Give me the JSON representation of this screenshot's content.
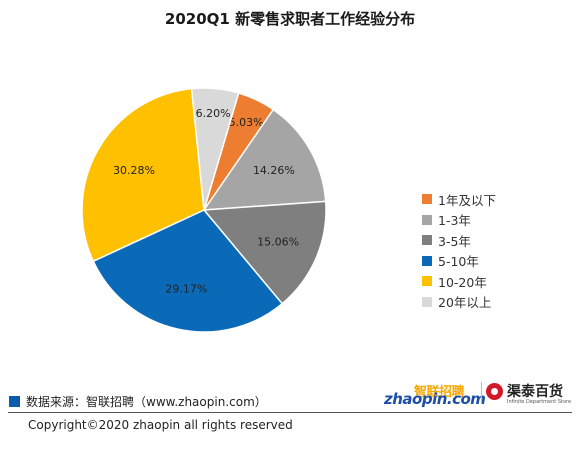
{
  "chart_data": {
    "type": "pie",
    "title": "2020Q1 新零售求职者工作经验分布",
    "categories": [
      "1年及以下",
      "1-3年",
      "3-5年",
      "5-10年",
      "10-20年",
      "20年以上"
    ],
    "values": [
      5.03,
      14.26,
      15.06,
      29.17,
      30.28,
      6.2
    ],
    "value_labels": [
      "5.03%",
      "14.26%",
      "15.06%",
      "29.17%",
      "30.28%",
      "6.20%"
    ],
    "colors": [
      "#ed7d31",
      "#a5a5a5",
      "#7f7f7f",
      "#0a6ab8",
      "#ffc000",
      "#d9d9d9"
    ],
    "legend_position": "right"
  },
  "footer": {
    "source": "数据来源：智联招聘（www.zhaopin.com）",
    "copyright": "Copyright©2020 zhaopin all rights reserved"
  },
  "logos": {
    "zhaopin_cn": "智联招聘",
    "zhaopin_en": "zhaopin.com",
    "store_cn": "渠泰百货",
    "store_en": "Infinite Department Store"
  }
}
